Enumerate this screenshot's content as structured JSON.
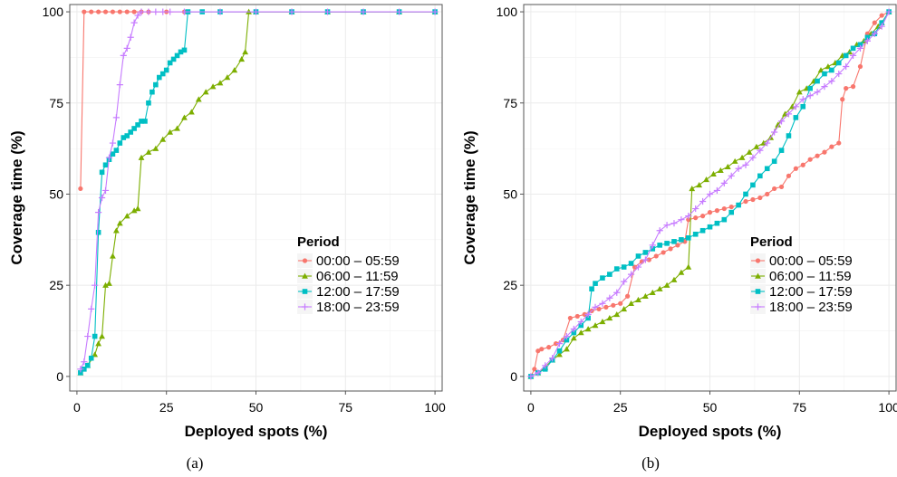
{
  "chart_data": [
    {
      "type": "line",
      "caption": "(a)",
      "xlabel": "Deployed spots (%)",
      "ylabel": "Coverage time (%)",
      "xlim": [
        -2,
        102
      ],
      "ylim": [
        -4,
        102
      ],
      "xticks": [
        0,
        25,
        50,
        75,
        100
      ],
      "yticks": [
        0,
        25,
        50,
        75,
        100
      ],
      "grid": true,
      "legend": {
        "title": "Period",
        "placement": "center-right"
      },
      "series": [
        {
          "name": "00:00 – 05:59",
          "color": "#F8766D",
          "marker": "circle",
          "x": [
            1,
            2,
            4,
            6,
            8,
            10,
            12,
            14,
            16,
            18,
            20,
            25,
            30,
            40,
            50,
            60,
            70,
            80,
            90,
            100
          ],
          "y": [
            51.5,
            100,
            100,
            100,
            100,
            100,
            100,
            100,
            100,
            100,
            100,
            100,
            100,
            100,
            100,
            100,
            100,
            100,
            100,
            100
          ]
        },
        {
          "name": "06:00 – 11:59",
          "color": "#7CAE00",
          "marker": "triangle",
          "x": [
            1,
            3,
            5,
            6,
            7,
            8,
            9,
            10,
            11,
            12,
            14,
            16,
            17,
            18,
            20,
            22,
            24,
            26,
            28,
            30,
            32,
            34,
            36,
            38,
            40,
            42,
            44,
            46,
            47,
            48,
            50,
            60,
            70,
            80,
            90,
            100
          ],
          "y": [
            1,
            3,
            6,
            9,
            11,
            25,
            25.5,
            33,
            40,
            42,
            44,
            45.5,
            46,
            60,
            61.5,
            62.5,
            65,
            67,
            68,
            71,
            72.5,
            76,
            78,
            79.5,
            80.5,
            82,
            84,
            87,
            89,
            100,
            100,
            100,
            100,
            100,
            100,
            100
          ]
        },
        {
          "name": "12:00 – 17:59",
          "color": "#00BFC4",
          "marker": "square",
          "x": [
            1,
            2,
            3,
            4,
            5,
            6,
            7,
            8,
            9,
            10,
            11,
            12,
            13,
            14,
            15,
            16,
            17,
            18,
            19,
            20,
            21,
            22,
            23,
            24,
            25,
            26,
            27,
            28,
            29,
            30,
            31,
            35,
            40,
            50,
            60,
            70,
            80,
            90,
            100
          ],
          "y": [
            1,
            2,
            3,
            5,
            11,
            39.5,
            56,
            58,
            59.5,
            61,
            62,
            64,
            65.5,
            66,
            67,
            68,
            69,
            70,
            70,
            75,
            78,
            80,
            82,
            83,
            84,
            86,
            87,
            88,
            89,
            89.5,
            100,
            100,
            100,
            100,
            100,
            100,
            100,
            100,
            100
          ]
        },
        {
          "name": "18:00 – 23:59",
          "color": "#C77CFF",
          "marker": "plus",
          "x": [
            1,
            2,
            3,
            4,
            5,
            6,
            7,
            8,
            9,
            10,
            11,
            12,
            13,
            14,
            15,
            16,
            17,
            18,
            20,
            22,
            24,
            26,
            30,
            40,
            50,
            60,
            70,
            80,
            90,
            100
          ],
          "y": [
            2,
            4,
            11,
            18.5,
            25,
            45,
            49,
            51,
            60,
            64,
            71,
            80,
            88,
            90,
            93,
            97,
            99,
            100,
            100,
            100,
            100,
            100,
            100,
            100,
            100,
            100,
            100,
            100,
            100,
            100
          ]
        }
      ]
    },
    {
      "type": "line",
      "caption": "(b)",
      "xlabel": "Deployed spots (%)",
      "ylabel": "Coverage time (%)",
      "xlim": [
        -2,
        102
      ],
      "ylim": [
        -4,
        102
      ],
      "xticks": [
        0,
        25,
        50,
        75,
        100
      ],
      "yticks": [
        0,
        25,
        50,
        75,
        100
      ],
      "grid": true,
      "legend": {
        "title": "Period",
        "placement": "center-right"
      },
      "series": [
        {
          "name": "00:00 – 05:59",
          "color": "#F8766D",
          "marker": "circle",
          "x": [
            0,
            1,
            2,
            3,
            5,
            7,
            9,
            11,
            13,
            15,
            17,
            19,
            21,
            23,
            25,
            27,
            29,
            31,
            33,
            35,
            37,
            39,
            41,
            43,
            44,
            46,
            48,
            50,
            52,
            54,
            56,
            58,
            60,
            62,
            64,
            66,
            68,
            70,
            72,
            74,
            76,
            78,
            80,
            82,
            84,
            86,
            87,
            88,
            90,
            92,
            94,
            96,
            98,
            100
          ],
          "y": [
            0,
            2,
            7,
            7.5,
            8,
            9,
            10,
            16,
            16.5,
            17,
            18,
            18.5,
            19,
            19.5,
            20,
            22,
            30,
            31.5,
            32,
            33,
            34,
            35,
            36,
            37,
            43,
            43.5,
            44,
            45,
            45.5,
            46,
            46.5,
            47,
            48,
            48.5,
            49,
            50,
            51.5,
            52,
            55,
            57,
            58,
            59.5,
            60.5,
            61.5,
            63,
            64,
            76,
            79,
            79.5,
            85,
            94,
            97,
            99,
            100
          ]
        },
        {
          "name": "06:00 – 11:59",
          "color": "#7CAE00",
          "marker": "triangle",
          "x": [
            0,
            2,
            4,
            6,
            8,
            10,
            12,
            14,
            16,
            18,
            20,
            22,
            24,
            26,
            28,
            30,
            32,
            34,
            36,
            38,
            40,
            42,
            44,
            45,
            47,
            49,
            51,
            53,
            55,
            57,
            59,
            61,
            63,
            65,
            67,
            69,
            71,
            73,
            75,
            77,
            79,
            81,
            83,
            85,
            87,
            89,
            91,
            93,
            95,
            97,
            98,
            100
          ],
          "y": [
            0,
            1,
            2.5,
            4.5,
            6,
            7.5,
            10.5,
            12,
            13,
            14,
            15,
            16,
            17,
            18.5,
            20,
            21,
            22,
            23,
            24,
            25,
            26.5,
            28.5,
            30,
            51.5,
            52.5,
            54,
            55.5,
            56.5,
            57.5,
            59,
            60,
            61.5,
            63,
            64,
            65.5,
            69,
            72,
            74,
            78,
            79,
            81,
            84,
            85,
            86,
            88,
            89,
            91,
            92,
            94,
            96,
            97,
            100
          ]
        },
        {
          "name": "12:00 – 17:59",
          "color": "#00BFC4",
          "marker": "square",
          "x": [
            0,
            2,
            4,
            6,
            8,
            10,
            12,
            14,
            16,
            17,
            18,
            20,
            22,
            24,
            26,
            28,
            30,
            32,
            34,
            36,
            38,
            40,
            42,
            44,
            46,
            48,
            50,
            52,
            54,
            56,
            58,
            60,
            62,
            64,
            66,
            68,
            70,
            72,
            74,
            76,
            78,
            80,
            82,
            84,
            86,
            88,
            90,
            92,
            94,
            96,
            98,
            100
          ],
          "y": [
            0,
            1,
            2,
            4.5,
            7,
            10,
            12,
            14,
            16,
            24,
            25.5,
            27,
            28,
            29.5,
            30,
            31,
            33,
            34,
            35,
            36,
            36.5,
            37,
            37.5,
            38,
            39,
            40,
            41,
            42,
            43,
            45,
            47,
            50,
            52.5,
            55,
            57,
            59,
            62,
            66,
            71,
            74,
            79,
            81,
            83,
            84,
            86,
            88,
            90,
            91,
            93,
            94,
            97,
            100
          ]
        },
        {
          "name": "18:00 – 23:59",
          "color": "#C77CFF",
          "marker": "plus",
          "x": [
            0,
            2,
            4,
            6,
            8,
            10,
            12,
            14,
            16,
            18,
            20,
            22,
            24,
            26,
            28,
            30,
            32,
            34,
            36,
            38,
            40,
            42,
            44,
            46,
            48,
            50,
            52,
            54,
            56,
            58,
            60,
            62,
            64,
            66,
            68,
            70,
            72,
            74,
            76,
            78,
            80,
            82,
            84,
            86,
            88,
            90,
            92,
            94,
            96,
            98,
            100
          ],
          "y": [
            0,
            1,
            3,
            5,
            9,
            11,
            13,
            15,
            17,
            19,
            20,
            21.5,
            23,
            26,
            28,
            30,
            32,
            36,
            40,
            41.5,
            42,
            43,
            44,
            46,
            48,
            50,
            51,
            53,
            55,
            57,
            58,
            60,
            62,
            64,
            67,
            70,
            72,
            74,
            76,
            77,
            78,
            79.5,
            81,
            83,
            85,
            88,
            90,
            92,
            94,
            96,
            100
          ]
        }
      ]
    }
  ]
}
